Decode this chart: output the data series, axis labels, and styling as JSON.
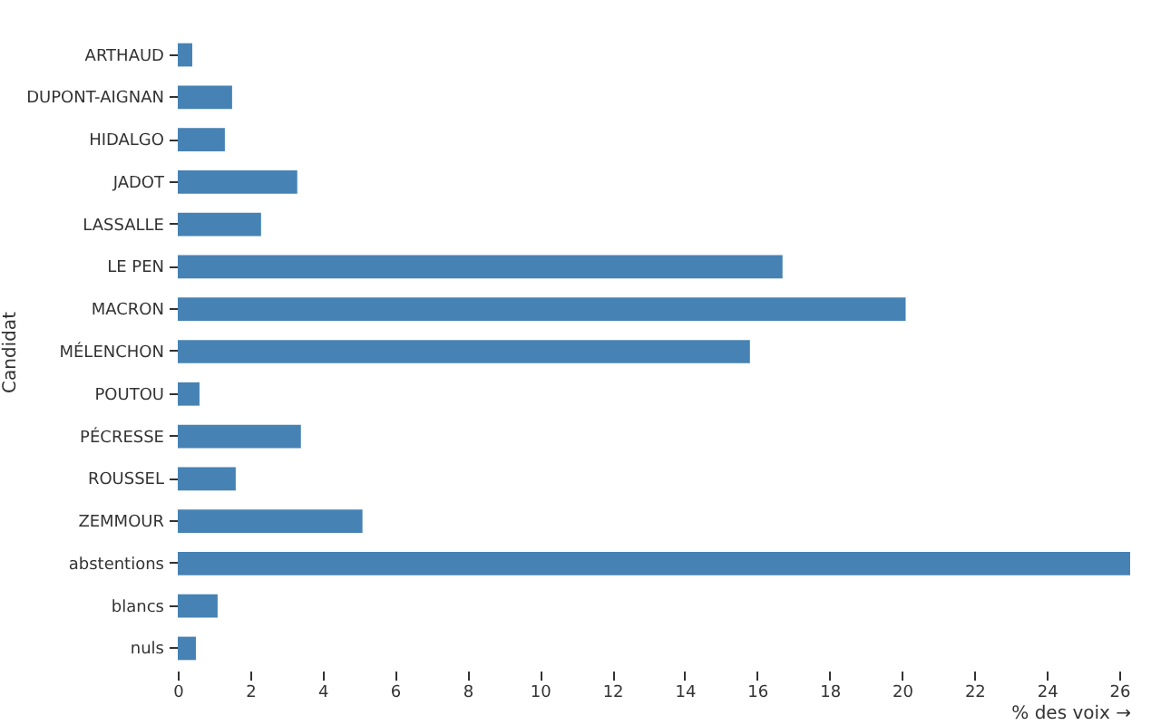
{
  "chart_data": {
    "type": "bar",
    "orientation": "horizontal",
    "xlabel": "% des voix →",
    "ylabel": "Candidat",
    "color": "#4682b4",
    "categories": [
      "ARTHAUD",
      "DUPONT-AIGNAN",
      "HIDALGO",
      "JADOT",
      "LASSALLE",
      "LE PEN",
      "MACRON",
      "MÉLENCHON",
      "POUTOU",
      "PÉCRESSE",
      "ROUSSEL",
      "ZEMMOUR",
      "abstentions",
      "blancs",
      "nuls"
    ],
    "values": [
      0.4,
      1.5,
      1.3,
      3.3,
      2.3,
      16.7,
      20.1,
      15.8,
      0.6,
      3.4,
      1.6,
      5.1,
      26.3,
      1.1,
      0.5
    ],
    "xlim": [
      0,
      26.3
    ],
    "xticks": [
      0,
      2,
      4,
      6,
      8,
      10,
      12,
      14,
      16,
      18,
      20,
      22,
      24,
      26
    ],
    "grid": false
  }
}
